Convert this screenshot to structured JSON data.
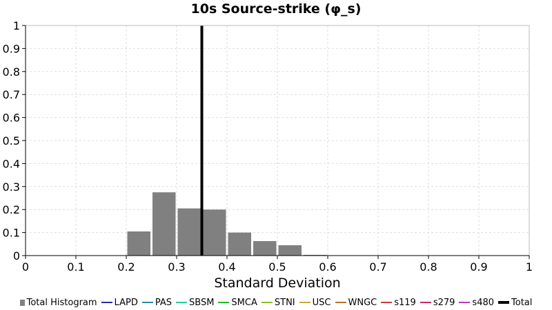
{
  "chart_data": {
    "type": "bar",
    "title": "10s Source-strike (φ_s)",
    "xlabel": "Standard Deviation",
    "ylabel": "",
    "xlim": [
      0,
      1
    ],
    "ylim": [
      0,
      1
    ],
    "x_ticks": [
      "0",
      "0.1",
      "0.2",
      "0.3",
      "0.4",
      "0.5",
      "0.6",
      "0.7",
      "0.8",
      "0.9",
      "1"
    ],
    "y_ticks": [
      "0",
      "0.1",
      "0.2",
      "0.3",
      "0.4",
      "0.5",
      "0.6",
      "0.7",
      "0.8",
      "0.9",
      "1"
    ],
    "grid": true,
    "histogram": {
      "name": "Total Histogram",
      "color": "#808080",
      "bin_width": 0.05,
      "bins": [
        {
          "x0": 0.2,
          "x1": 0.25,
          "value": 0.105
        },
        {
          "x0": 0.25,
          "x1": 0.3,
          "value": 0.275
        },
        {
          "x0": 0.3,
          "x1": 0.35,
          "value": 0.205
        },
        {
          "x0": 0.35,
          "x1": 0.4,
          "value": 0.2
        },
        {
          "x0": 0.4,
          "x1": 0.45,
          "value": 0.1
        },
        {
          "x0": 0.45,
          "x1": 0.5,
          "value": 0.063
        },
        {
          "x0": 0.5,
          "x1": 0.55,
          "value": 0.045
        },
        {
          "x0": 0.55,
          "x1": 0.6,
          "value": 0.003
        }
      ]
    },
    "total_line": {
      "name": "Total",
      "x": 0.35,
      "color": "#000000"
    },
    "legend_position": "bottom",
    "legend": [
      {
        "label": "Total Histogram",
        "color": "#808080",
        "kind": "box"
      },
      {
        "label": "LAPD",
        "color": "#2a2aa8",
        "kind": "line"
      },
      {
        "label": "PAS",
        "color": "#2a8aa8",
        "kind": "line"
      },
      {
        "label": "SBSM",
        "color": "#2ac9a0",
        "kind": "line"
      },
      {
        "label": "SMCA",
        "color": "#2ab82a",
        "kind": "line"
      },
      {
        "label": "STNI",
        "color": "#8ac02a",
        "kind": "line"
      },
      {
        "label": "USC",
        "color": "#c9a83a",
        "kind": "line"
      },
      {
        "label": "WNGC",
        "color": "#b8702a",
        "kind": "line"
      },
      {
        "label": "s119",
        "color": "#c83a3a",
        "kind": "line"
      },
      {
        "label": "s279",
        "color": "#c82a6a",
        "kind": "line"
      },
      {
        "label": "s480",
        "color": "#b83ab8",
        "kind": "line"
      },
      {
        "label": "Total",
        "color": "#000000",
        "kind": "thick"
      }
    ]
  }
}
